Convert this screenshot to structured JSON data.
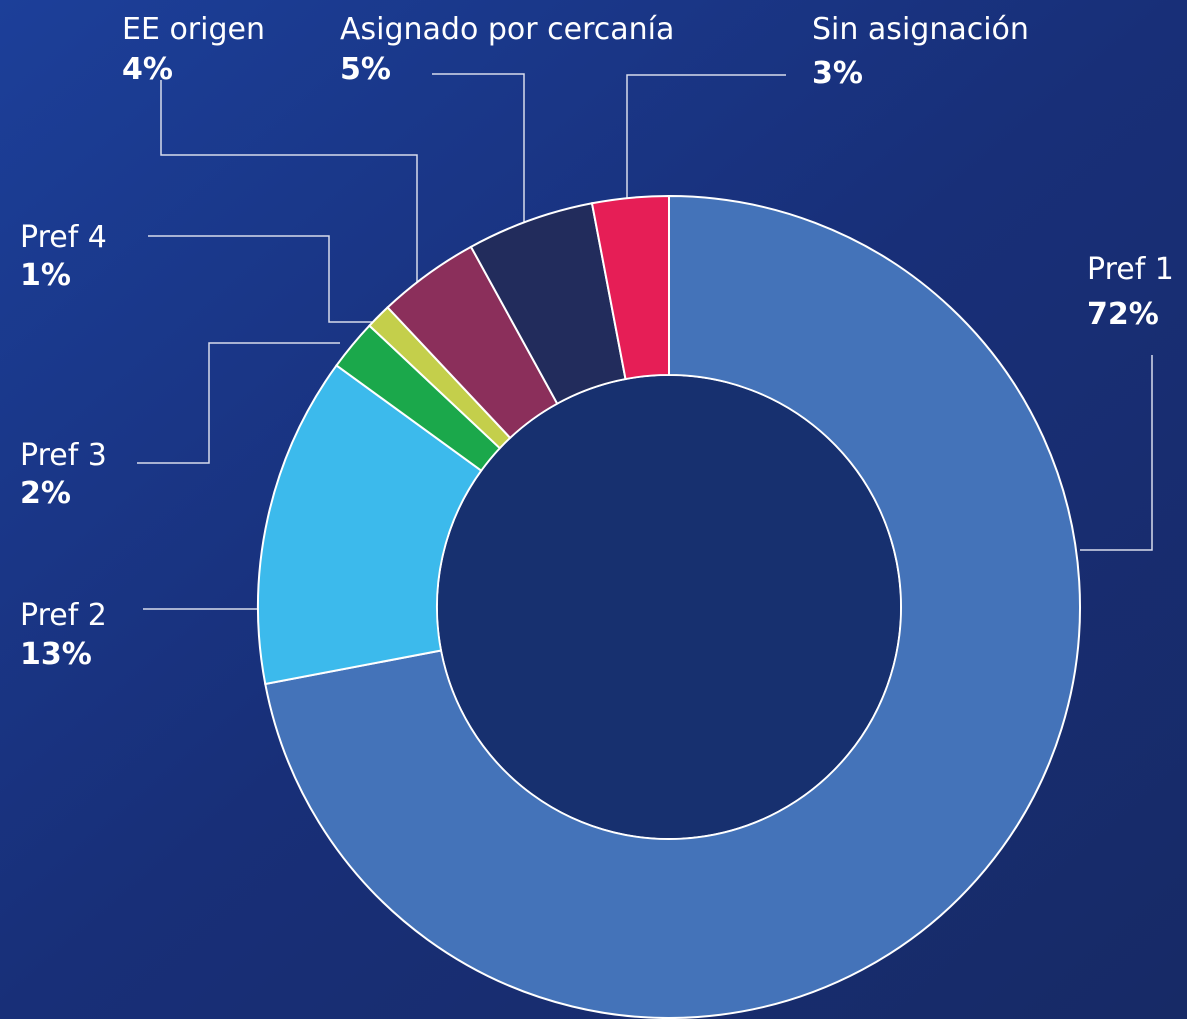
{
  "chart_data": {
    "type": "donut",
    "categories": [
      "Pref 1",
      "Pref 2",
      "Pref 3",
      "Pref 4",
      "EE origen",
      "Asignado por cercanía",
      "Sin asignación"
    ],
    "values": [
      72,
      13,
      2,
      1,
      4,
      5,
      3
    ],
    "value_labels": [
      "72%",
      "13%",
      "2%",
      "1%",
      "4%",
      "5%",
      "3%"
    ],
    "colors": [
      "#4473b9",
      "#3cbaec",
      "#1ba84b",
      "#c4cf4b",
      "#8b2f5b",
      "#222c5c",
      "#e61e56"
    ]
  }
}
